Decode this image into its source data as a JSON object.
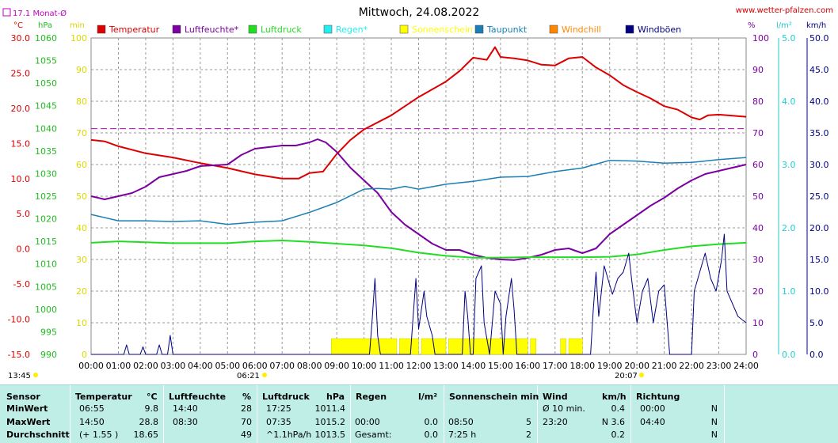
{
  "header": {
    "title": "Mittwoch, 24.08.2022",
    "site": "www.wetter-pfalzen.com",
    "month_avg": "17.1 Monat-Ø"
  },
  "units": {
    "temp": "°C",
    "hpa": "hPa",
    "min": "min",
    "pct": "%",
    "lm2": "l/m²",
    "kmh": "km/h"
  },
  "legend": [
    {
      "label": "Temperatur",
      "color": "#dd0000"
    },
    {
      "label": "Luftfeuchte*",
      "color": "#7b00a0"
    },
    {
      "label": "Luftdruck",
      "color": "#22dd22"
    },
    {
      "label": "Regen*",
      "color": "#22eeee"
    },
    {
      "label": "Sonnenschein",
      "color": "#ffff00"
    },
    {
      "label": "Taupunkt",
      "color": "#1a7fb5"
    },
    {
      "label": "Windchill",
      "color": "#ff8800"
    },
    {
      "label": "Windböen",
      "color": "#000080"
    }
  ],
  "axes": {
    "temp_ticks": [
      "30.0",
      "25.0",
      "20.0",
      "15.0",
      "10.0",
      "5.0",
      "0.0",
      "-5.0",
      "-10.0",
      "-15.0"
    ],
    "hpa_ticks": [
      "1060",
      "1055",
      "1050",
      "1045",
      "1040",
      "1035",
      "1030",
      "1025",
      "1020",
      "1015",
      "1010",
      "1005",
      "1000",
      "995",
      "990"
    ],
    "min_ticks": [
      "100",
      "90",
      "80",
      "70",
      "60",
      "50",
      "40",
      "30",
      "20",
      "10",
      "0"
    ],
    "pct_ticks": [
      "100",
      "90",
      "80",
      "70",
      "60",
      "50",
      "40",
      "30",
      "20",
      "10",
      "0"
    ],
    "rain_ticks": [
      "5.0",
      "4.0",
      "3.0",
      "2.0",
      "1.0",
      "0.0"
    ],
    "kmh_ticks": [
      "50.0",
      "45.0",
      "40.0",
      "35.0",
      "30.0",
      "25.0",
      "20.0",
      "15.0",
      "10.0",
      "5.0",
      "0.0"
    ],
    "x_ticks": [
      "00:00",
      "01:00",
      "02:00",
      "03:00",
      "04:00",
      "05:00",
      "06:00",
      "07:00",
      "08:00",
      "09:00",
      "10:00",
      "11:00",
      "12:00",
      "13:00",
      "14:00",
      "15:00",
      "16:00",
      "17:00",
      "18:00",
      "19:00",
      "20:00",
      "21:00",
      "22:00",
      "23:00",
      "24:00"
    ]
  },
  "markers": {
    "moonrise": "13:45",
    "sunrise": "06:21",
    "sunset": "20:07"
  },
  "chart_data": {
    "type": "line",
    "title": "Mittwoch, 24.08.2022",
    "x_unit": "hour of day",
    "xlim": [
      0,
      24
    ],
    "reference_line": {
      "name": "17.1 Monat-Ø",
      "axis": "temp",
      "value": 17.1
    },
    "series": [
      {
        "name": "Temperatur",
        "axis": "temp",
        "color": "#dd0000",
        "points": [
          [
            0,
            15.5
          ],
          [
            0.5,
            15.3
          ],
          [
            1,
            14.6
          ],
          [
            2,
            13.6
          ],
          [
            3,
            13.0
          ],
          [
            4,
            12.2
          ],
          [
            5,
            11.5
          ],
          [
            6,
            10.6
          ],
          [
            7,
            10.0
          ],
          [
            7.6,
            10.0
          ],
          [
            8,
            10.8
          ],
          [
            8.5,
            11.0
          ],
          [
            9,
            13.5
          ],
          [
            9.5,
            15.5
          ],
          [
            10,
            17.0
          ],
          [
            11,
            19.0
          ],
          [
            12,
            21.6
          ],
          [
            13,
            23.8
          ],
          [
            13.5,
            25.3
          ],
          [
            14,
            27.2
          ],
          [
            14.5,
            26.9
          ],
          [
            14.8,
            28.7
          ],
          [
            15,
            27.3
          ],
          [
            15.5,
            27.1
          ],
          [
            16,
            26.8
          ],
          [
            16.5,
            26.2
          ],
          [
            17,
            26.1
          ],
          [
            17.5,
            27.1
          ],
          [
            18,
            27.3
          ],
          [
            18.5,
            25.8
          ],
          [
            19,
            24.7
          ],
          [
            19.5,
            23.3
          ],
          [
            20,
            22.3
          ],
          [
            20.5,
            21.4
          ],
          [
            21,
            20.3
          ],
          [
            21.5,
            19.8
          ],
          [
            22,
            18.7
          ],
          [
            22.3,
            18.4
          ],
          [
            22.6,
            19.0
          ],
          [
            23,
            19.1
          ],
          [
            24,
            18.8
          ]
        ]
      },
      {
        "name": "Luftfeuchte*",
        "axis": "pct",
        "color": "#7b00a0",
        "points": [
          [
            0,
            50
          ],
          [
            0.5,
            49
          ],
          [
            1,
            50
          ],
          [
            1.5,
            51
          ],
          [
            2,
            53
          ],
          [
            2.5,
            56
          ],
          [
            3,
            57
          ],
          [
            3.5,
            58
          ],
          [
            4,
            59.5
          ],
          [
            5,
            60
          ],
          [
            5.5,
            63
          ],
          [
            6,
            65
          ],
          [
            6.5,
            65.5
          ],
          [
            7,
            66
          ],
          [
            7.5,
            66
          ],
          [
            8,
            67
          ],
          [
            8.3,
            68
          ],
          [
            8.6,
            67
          ],
          [
            9,
            64
          ],
          [
            9.5,
            59
          ],
          [
            10,
            55
          ],
          [
            10.5,
            51
          ],
          [
            11,
            45
          ],
          [
            11.5,
            41
          ],
          [
            12,
            38
          ],
          [
            12.5,
            35
          ],
          [
            13,
            33
          ],
          [
            13.5,
            33
          ],
          [
            14,
            31.5
          ],
          [
            14.5,
            30.5
          ],
          [
            15,
            30
          ],
          [
            15.5,
            29.8
          ],
          [
            16,
            30.5
          ],
          [
            16.5,
            31.5
          ],
          [
            17,
            33
          ],
          [
            17.5,
            33.5
          ],
          [
            18,
            32
          ],
          [
            18.5,
            33.5
          ],
          [
            19,
            38
          ],
          [
            19.5,
            41
          ],
          [
            20,
            44
          ],
          [
            20.5,
            47
          ],
          [
            21,
            49.5
          ],
          [
            21.5,
            52.5
          ],
          [
            22,
            55
          ],
          [
            22.5,
            57
          ],
          [
            23,
            58
          ],
          [
            24,
            60
          ]
        ]
      },
      {
        "name": "Luftdruck",
        "axis": "hpa",
        "color": "#22dd22",
        "points": [
          [
            0,
            1014.7
          ],
          [
            1,
            1015.0
          ],
          [
            2,
            1014.8
          ],
          [
            3,
            1014.6
          ],
          [
            4,
            1014.6
          ],
          [
            5,
            1014.6
          ],
          [
            6,
            1015.0
          ],
          [
            7,
            1015.2
          ],
          [
            8,
            1014.9
          ],
          [
            9,
            1014.5
          ],
          [
            10,
            1014.1
          ],
          [
            11,
            1013.5
          ],
          [
            12,
            1012.5
          ],
          [
            13,
            1011.8
          ],
          [
            14,
            1011.4
          ],
          [
            15,
            1011.4
          ],
          [
            16,
            1011.5
          ],
          [
            17,
            1011.5
          ],
          [
            18,
            1011.5
          ],
          [
            19,
            1011.6
          ],
          [
            20,
            1012.1
          ],
          [
            21,
            1013.1
          ],
          [
            22,
            1013.9
          ],
          [
            23,
            1014.4
          ],
          [
            24,
            1014.7
          ]
        ]
      },
      {
        "name": "Taupunkt",
        "axis": "temp",
        "color": "#1a7fb5",
        "points": [
          [
            0,
            4.9
          ],
          [
            1,
            4.0
          ],
          [
            2,
            4.0
          ],
          [
            3,
            3.9
          ],
          [
            4,
            4.0
          ],
          [
            5,
            3.5
          ],
          [
            6,
            3.8
          ],
          [
            7,
            4.0
          ],
          [
            8,
            5.2
          ],
          [
            9,
            6.6
          ],
          [
            10,
            8.5
          ],
          [
            10.5,
            8.6
          ],
          [
            11,
            8.5
          ],
          [
            11.5,
            8.9
          ],
          [
            12,
            8.5
          ],
          [
            13,
            9.2
          ],
          [
            14,
            9.6
          ],
          [
            15,
            10.2
          ],
          [
            16,
            10.3
          ],
          [
            17,
            11.0
          ],
          [
            18,
            11.5
          ],
          [
            19,
            12.6
          ],
          [
            20,
            12.5
          ],
          [
            21,
            12.2
          ],
          [
            22,
            12.3
          ],
          [
            23,
            12.7
          ],
          [
            24,
            13.0
          ]
        ]
      },
      {
        "name": "Windböen",
        "axis": "kmh",
        "color": "#000080",
        "points": [
          [
            0,
            0
          ],
          [
            1.2,
            0
          ],
          [
            1.3,
            1.5
          ],
          [
            1.4,
            0
          ],
          [
            1.8,
            0
          ],
          [
            1.9,
            1.2
          ],
          [
            2.0,
            0
          ],
          [
            2.4,
            0
          ],
          [
            2.5,
            1.5
          ],
          [
            2.6,
            0
          ],
          [
            2.8,
            0
          ],
          [
            2.9,
            3.0
          ],
          [
            3.0,
            0
          ],
          [
            10.2,
            0
          ],
          [
            10.3,
            5.5
          ],
          [
            10.4,
            12.0
          ],
          [
            10.5,
            3.0
          ],
          [
            10.6,
            0
          ],
          [
            11.7,
            0
          ],
          [
            11.8,
            6.0
          ],
          [
            11.9,
            12.0
          ],
          [
            12.0,
            4.0
          ],
          [
            12.2,
            10.0
          ],
          [
            12.3,
            6.0
          ],
          [
            12.5,
            3.0
          ],
          [
            12.6,
            0
          ],
          [
            13.6,
            0
          ],
          [
            13.7,
            10.0
          ],
          [
            13.8,
            6.0
          ],
          [
            13.9,
            0
          ],
          [
            14.0,
            0
          ],
          [
            14.1,
            12.0
          ],
          [
            14.3,
            14.0
          ],
          [
            14.4,
            5.0
          ],
          [
            14.6,
            0
          ],
          [
            14.8,
            10.0
          ],
          [
            15.0,
            8.0
          ],
          [
            15.1,
            0
          ],
          [
            15.2,
            6.0
          ],
          [
            15.4,
            12.0
          ],
          [
            15.5,
            7.0
          ],
          [
            15.6,
            0
          ],
          [
            18.3,
            0
          ],
          [
            18.4,
            7.0
          ],
          [
            18.5,
            13.0
          ],
          [
            18.6,
            6.0
          ],
          [
            18.8,
            14.0
          ],
          [
            19.0,
            11.0
          ],
          [
            19.1,
            9.5
          ],
          [
            19.3,
            12.0
          ],
          [
            19.5,
            13.0
          ],
          [
            19.7,
            16.0
          ],
          [
            19.8,
            12.0
          ],
          [
            20.0,
            5.0
          ],
          [
            20.2,
            10.0
          ],
          [
            20.4,
            12.0
          ],
          [
            20.6,
            5.0
          ],
          [
            20.8,
            10.0
          ],
          [
            21.0,
            11.0
          ],
          [
            21.2,
            0
          ],
          [
            22.0,
            0
          ],
          [
            22.1,
            10.0
          ],
          [
            22.3,
            13.0
          ],
          [
            22.5,
            16.0
          ],
          [
            22.7,
            12.0
          ],
          [
            22.9,
            10.0
          ],
          [
            23.1,
            15.0
          ],
          [
            23.2,
            19.0
          ],
          [
            23.3,
            10.0
          ],
          [
            23.5,
            8.0
          ],
          [
            23.7,
            6.0
          ],
          [
            24.0,
            5.0
          ]
        ]
      }
    ],
    "sunshine_intervals": [
      [
        8.8,
        11.2
      ],
      [
        11.3,
        12.0
      ],
      [
        12.1,
        13.0
      ],
      [
        13.1,
        16.0
      ],
      [
        16.1,
        16.3
      ],
      [
        17.2,
        17.4
      ],
      [
        17.5,
        18.0
      ]
    ]
  },
  "stats": {
    "headers": {
      "sensor": "Sensor",
      "temperatur": "Temperatur",
      "temp_unit": "°C",
      "luftfeuchte": "Luftfeuchte",
      "luftfeuchte_unit": "%",
      "luftdruck": "Luftdruck",
      "luftdruck_unit": "hPa",
      "regen": "Regen",
      "regen_unit": "l/m²",
      "sonne": "Sonnenschein min",
      "wind": "Wind",
      "wind_unit": "km/h",
      "richtung": "Richtung"
    },
    "rows": [
      {
        "label": "MinWert",
        "temp_time": "06:55",
        "temp_val": "9.8",
        "hum_time": "14:40",
        "hum_val": "28",
        "press_time": "17:25",
        "press_val": "1011.4",
        "rain_time": "",
        "rain_val": "",
        "sun_time": "",
        "sun_val": "",
        "wind_label": "Ø 10 min.",
        "wind_val": "0.4",
        "dir_time": "00:00",
        "dir_val": "N"
      },
      {
        "label": "MaxWert",
        "temp_time": "14:50",
        "temp_val": "28.8",
        "hum_time": "08:30",
        "hum_val": "70",
        "press_time": "07:35",
        "press_val": "1015.2",
        "rain_time": "00:00",
        "rain_val": "0.0",
        "sun_time": "08:50",
        "sun_val": "5",
        "wind_label": "23:20",
        "wind_val": "N 3.6",
        "dir_time": "04:40",
        "dir_val": "N"
      },
      {
        "label": "Durchschnitt",
        "temp_time": "(+ 1.55 )",
        "temp_val": "18.65",
        "hum_time": "",
        "hum_val": "49",
        "press_time": "^1.1hPa/h",
        "press_val": "1013.5",
        "rain_time": "Gesamt:",
        "rain_val": "0.0",
        "sun_time": "7:25 h",
        "sun_val": "2",
        "wind_label": "",
        "wind_val": "0.2",
        "dir_time": "",
        "dir_val": "N"
      }
    ]
  }
}
